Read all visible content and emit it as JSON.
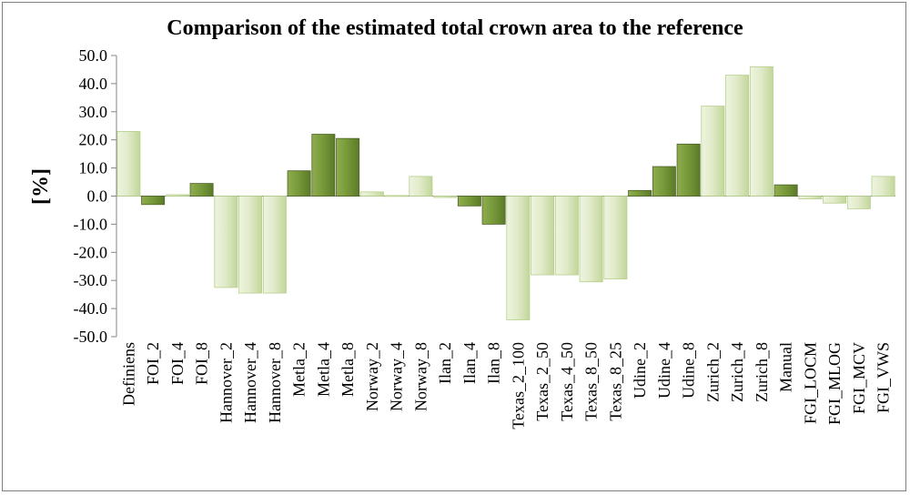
{
  "chart_data": {
    "type": "bar",
    "title": "Comparison of the estimated total crown area to the reference",
    "xlabel": "",
    "ylabel": "[%]",
    "ylim": [
      -50,
      50
    ],
    "yticks": [
      "50.0",
      "40.0",
      "30.0",
      "20.0",
      "10.0",
      "0.0",
      "-10.0",
      "-20.0",
      "-30.0",
      "-40.0",
      "-50.0"
    ],
    "categories": [
      "Definiens",
      "FOI_2",
      "FOI_4",
      "FOI_8",
      "Hannover_2",
      "Hannover_4",
      "Hannover_8",
      "Metla_2",
      "Metla_4",
      "Metla_8",
      "Norway_2",
      "Norway_4",
      "Norway_8",
      "Ilan_2",
      "Ilan_4",
      "Ilan_8",
      "Texas_2_100",
      "Texas_2_50",
      "Texas_4_50",
      "Texas_8_50",
      "Texas_8_25",
      "Udine_2",
      "Udine_4",
      "Udine_8",
      "Zurich_2",
      "Zurich_4",
      "Zurich_8",
      "Manual",
      "FGI_LOCM",
      "FGI_MLOG",
      "FGI_MCV",
      "FGI_VWS"
    ],
    "values": [
      23,
      -3,
      0.5,
      4.5,
      -32.5,
      -34.5,
      -34.5,
      9,
      22,
      20.5,
      1.5,
      0.2,
      7,
      -0.5,
      -3.5,
      -10,
      -44,
      -28,
      -28,
      -30.5,
      -29.5,
      2,
      10.5,
      18.5,
      32,
      43,
      46,
      4,
      -1,
      -2.5,
      -4.5,
      7
    ],
    "bar_colors": [
      "light",
      "dark",
      "light",
      "dark",
      "light",
      "light",
      "light",
      "dark",
      "dark",
      "dark",
      "light",
      "light",
      "light",
      "light",
      "dark",
      "dark",
      "light",
      "light",
      "light",
      "light",
      "light",
      "dark",
      "dark",
      "dark",
      "light",
      "light",
      "light",
      "dark",
      "light",
      "light",
      "light",
      "light"
    ],
    "palette": {
      "light_fill": "#d7e4bd",
      "light_edge": "#b6cf8a",
      "dark_fill": "#77933c",
      "dark_edge": "#4f6228"
    },
    "gridlines": false,
    "legend": "none"
  }
}
